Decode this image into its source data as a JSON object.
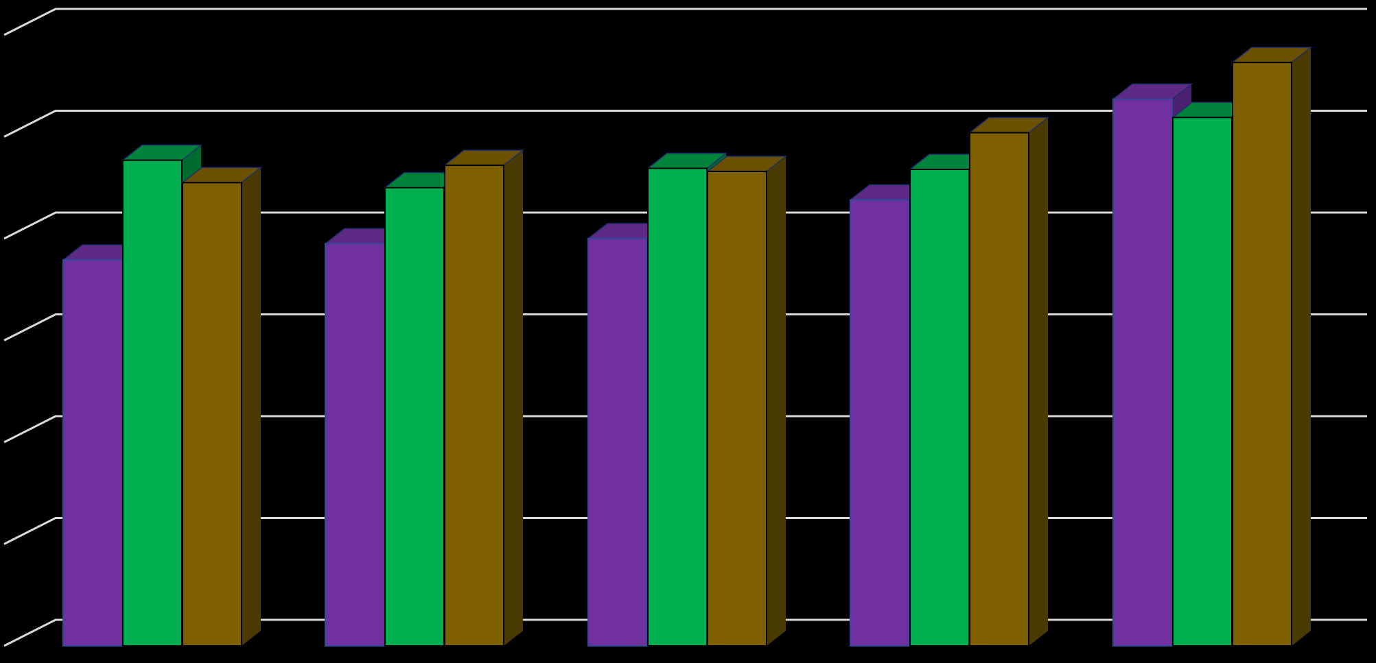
{
  "chart_data": {
    "type": "bar",
    "style": "3d-clustered-column",
    "categories": [
      "",
      "",
      "",
      "",
      ""
    ],
    "series": [
      {
        "color": "#7030A0",
        "top_color": "#5E2A86",
        "side_color": "#4B2070",
        "values": [
          3.79,
          3.95,
          4.0,
          4.38,
          5.37
        ]
      },
      {
        "color": "#00B050",
        "top_color": "#00843C",
        "side_color": "#006B31",
        "values": [
          4.77,
          4.5,
          4.69,
          4.68,
          5.19
        ]
      },
      {
        "color": "#7F6000",
        "top_color": "#6B5000",
        "side_color": "#4A3A00",
        "values": [
          4.55,
          4.72,
          4.66,
          5.04,
          5.73
        ]
      }
    ],
    "ylim": [
      0,
      6
    ],
    "grid": true,
    "gridline_color": "#D9D9D9",
    "background": "#000000"
  }
}
